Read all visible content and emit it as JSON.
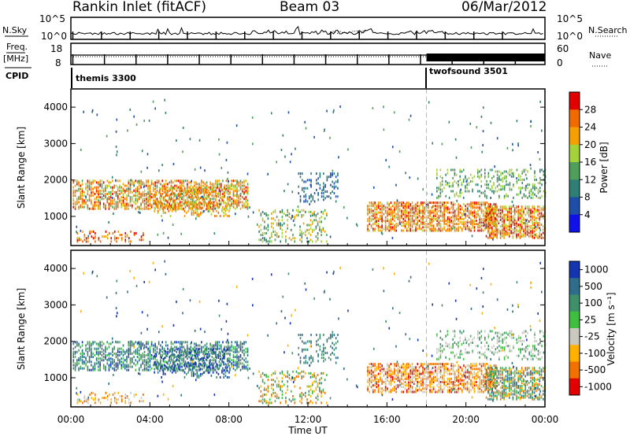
{
  "header": {
    "station": "Rankin Inlet (fitACF)",
    "beam": "Beam 03",
    "date": "06/Mar/2012"
  },
  "panels": {
    "nsky_label": "N.Sky",
    "nsearch_label": "N.Search",
    "nsky_ticks": [
      "10^5",
      "10^0"
    ],
    "freq_label_1": "Freq.",
    "freq_label_2": "[MHz]",
    "freq_ticks": [
      "18",
      "8"
    ],
    "nave_label": "Nave",
    "nave_ticks": [
      "60",
      "0"
    ],
    "cpid_label": "CPID",
    "programs": [
      "themis 3300",
      "twofsound 3501"
    ]
  },
  "chart_data": [
    {
      "type": "heatmap",
      "title": "",
      "quantity": "Power",
      "xlabel": "",
      "ylabel": "Slant Range [km]",
      "x_ticks": [
        "00:00",
        "04:00",
        "08:00",
        "12:00",
        "16:00",
        "20:00",
        "00:00"
      ],
      "y_ticks": [
        1000,
        2000,
        3000,
        4000
      ],
      "ylim": [
        200,
        4500
      ],
      "colorbar": {
        "label": "Power [dB]",
        "ticks": [
          4,
          8,
          12,
          16,
          20,
          24,
          28
        ],
        "colors": [
          "#1010e8",
          "#1e4ea8",
          "#2f7f74",
          "#4f9e5a",
          "#a4d23a",
          "#f5a000",
          "#f06a00",
          "#e00000"
        ]
      }
    },
    {
      "type": "heatmap",
      "title": "",
      "quantity": "Velocity",
      "xlabel": "Time UT",
      "ylabel": "Slant Range [km]",
      "x_ticks": [
        "00:00",
        "04:00",
        "08:00",
        "12:00",
        "16:00",
        "20:00",
        "00:00"
      ],
      "y_ticks": [
        1000,
        2000,
        3000,
        4000
      ],
      "ylim": [
        200,
        4500
      ],
      "colorbar": {
        "label": "Velocity [m s⁻¹]",
        "ticks": [
          "1000",
          "500",
          "100",
          "25",
          "-25",
          "-100",
          "-500",
          "-1000"
        ],
        "colors": [
          "#1535b0",
          "#2f6e8a",
          "#3f8f6a",
          "#3fbf3f",
          "#c9c9c0",
          "#ffb000",
          "#f07000",
          "#e00000"
        ]
      }
    }
  ]
}
